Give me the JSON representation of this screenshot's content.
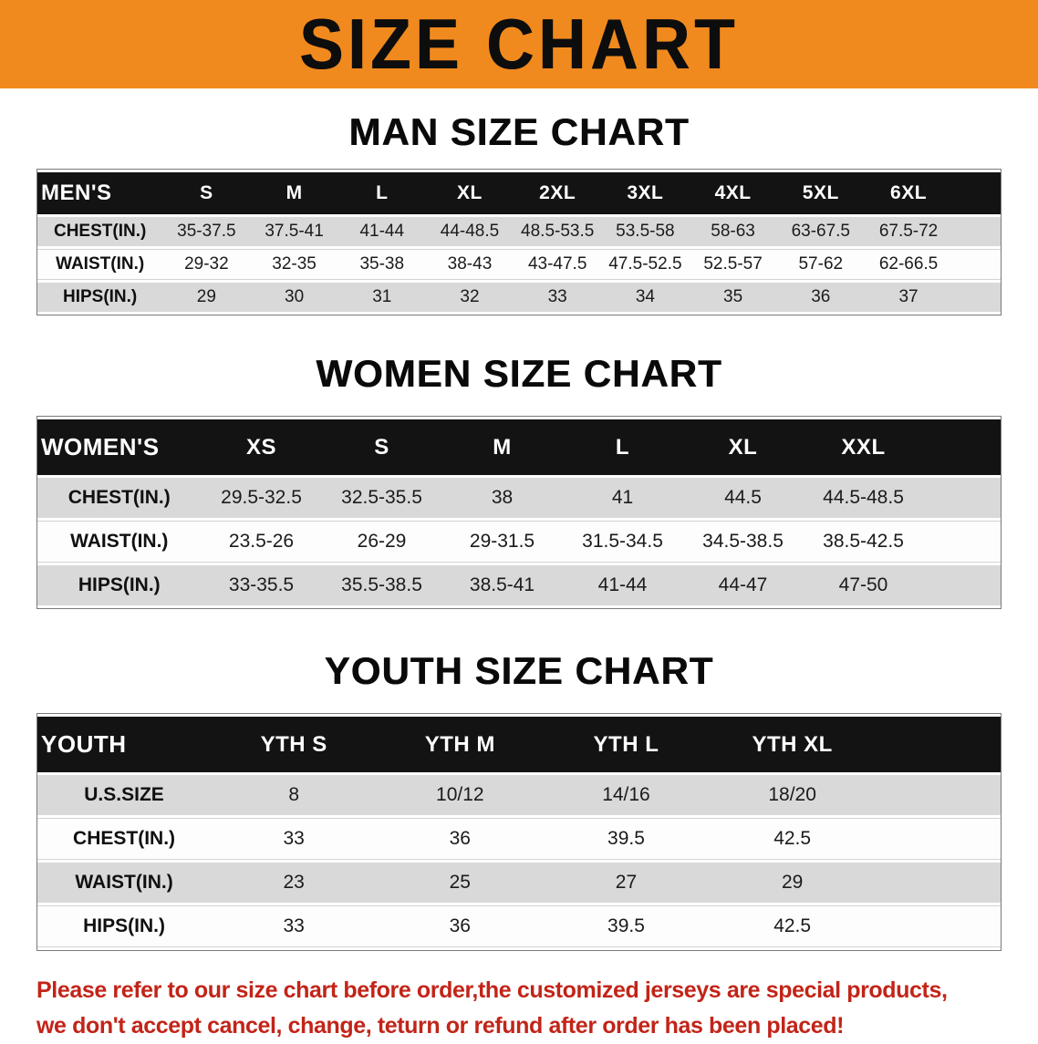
{
  "banner": {
    "title": "SIZE CHART"
  },
  "colors": {
    "banner_bg": "#F18A1E",
    "header_bg": "#131313",
    "row_alt": "#D9D9D9",
    "disclaimer_red": "#C22418"
  },
  "sections": {
    "men": {
      "heading": "MAN SIZE CHART",
      "table": {
        "header": [
          "MEN'S",
          "S",
          "M",
          "L",
          "XL",
          "2XL",
          "3XL",
          "4XL",
          "5XL",
          "6XL"
        ],
        "rows": [
          [
            "CHEST(IN.)",
            "35-37.5",
            "37.5-41",
            "41-44",
            "44-48.5",
            "48.5-53.5",
            "53.5-58",
            "58-63",
            "63-67.5",
            "67.5-72"
          ],
          [
            "WAIST(IN.)",
            "29-32",
            "32-35",
            "35-38",
            "38-43",
            "43-47.5",
            "47.5-52.5",
            "52.5-57",
            "57-62",
            "62-66.5"
          ],
          [
            "HIPS(IN.)",
            "29",
            "30",
            "31",
            "32",
            "33",
            "34",
            "35",
            "36",
            "37"
          ]
        ]
      }
    },
    "women": {
      "heading": "WOMEN SIZE CHART",
      "table": {
        "header": [
          "WOMEN'S",
          "XS",
          "S",
          "M",
          "L",
          "XL",
          "XXL"
        ],
        "rows": [
          [
            "CHEST(IN.)",
            "29.5-32.5",
            "32.5-35.5",
            "38",
            "41",
            "44.5",
            "44.5-48.5"
          ],
          [
            "WAIST(IN.)",
            "23.5-26",
            "26-29",
            "29-31.5",
            "31.5-34.5",
            "34.5-38.5",
            "38.5-42.5"
          ],
          [
            "HIPS(IN.)",
            "33-35.5",
            "35.5-38.5",
            "38.5-41",
            "41-44",
            "44-47",
            "47-50"
          ]
        ]
      }
    },
    "youth": {
      "heading": "YOUTH SIZE CHART",
      "table": {
        "header": [
          "YOUTH",
          "YTH S",
          "YTH M",
          "YTH L",
          "YTH XL"
        ],
        "rows": [
          [
            "U.S.SIZE",
            "8",
            "10/12",
            "14/16",
            "18/20"
          ],
          [
            "CHEST(IN.)",
            "33",
            "36",
            "39.5",
            "42.5"
          ],
          [
            "WAIST(IN.)",
            "23",
            "25",
            "27",
            "29"
          ],
          [
            "HIPS(IN.)",
            "33",
            "36",
            "39.5",
            "42.5"
          ]
        ]
      }
    }
  },
  "disclaimer": {
    "line1": "Please refer to our size chart before order,the customized jerseys are special products,",
    "line2": "we don't accept cancel, change, teturn or refund after order has been placed!"
  }
}
